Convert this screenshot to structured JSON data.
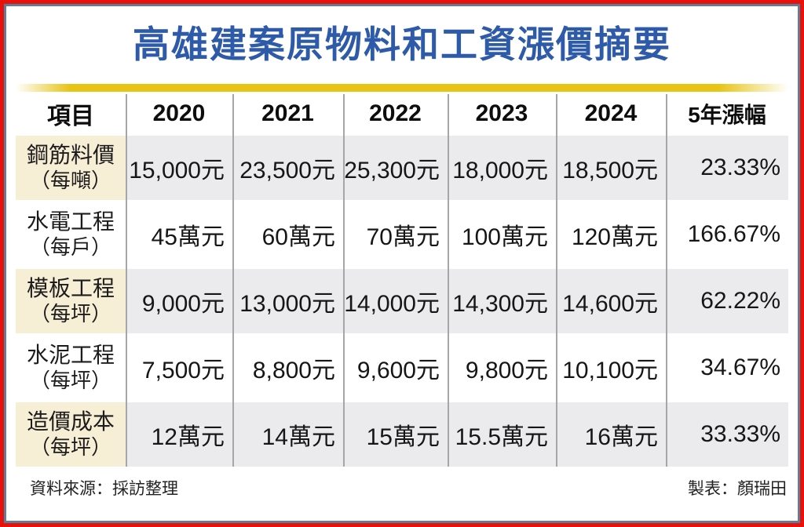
{
  "title": "高雄建案原物料和工資漲價摘要",
  "colors": {
    "title_blue": "#2d5aa9",
    "bar_yellow": "#e8c414",
    "outer_border_red": "#e8120d",
    "inner_border_slate": "#5e7d99",
    "item_cell_cream": "#f7eed6",
    "shaded_row_gray": "#ebebee"
  },
  "chart_data": {
    "type": "table",
    "title": "高雄建案原物料和工資漲價摘要",
    "columns": [
      "項目",
      "2020",
      "2021",
      "2022",
      "2023",
      "2024",
      "5年漲幅"
    ],
    "rows": [
      {
        "item": "鋼筋料價",
        "unit": "（每噸）",
        "values": [
          "15,000元",
          "23,500元",
          "25,300元",
          "18,000元",
          "18,500元",
          "23.33%"
        ]
      },
      {
        "item": "水電工程",
        "unit": "（每戶）",
        "values": [
          "45萬元",
          "60萬元",
          "70萬元",
          "100萬元",
          "120萬元",
          "166.67%"
        ]
      },
      {
        "item": "模板工程",
        "unit": "（每坪）",
        "values": [
          "9,000元",
          "13,000元",
          "14,000元",
          "14,300元",
          "14,600元",
          "62.22%"
        ]
      },
      {
        "item": "水泥工程",
        "unit": "（每坪）",
        "values": [
          "7,500元",
          "8,800元",
          "9,600元",
          "9,800元",
          "10,100元",
          "34.67%"
        ]
      },
      {
        "item": "造價成本",
        "unit": "（每坪）",
        "values": [
          "12萬元",
          "14萬元",
          "15萬元",
          "15.5萬元",
          "16萬元",
          "33.33%"
        ]
      }
    ]
  },
  "footer": {
    "source": "資料來源：採訪整理",
    "credit": "製表：顏瑞田"
  }
}
